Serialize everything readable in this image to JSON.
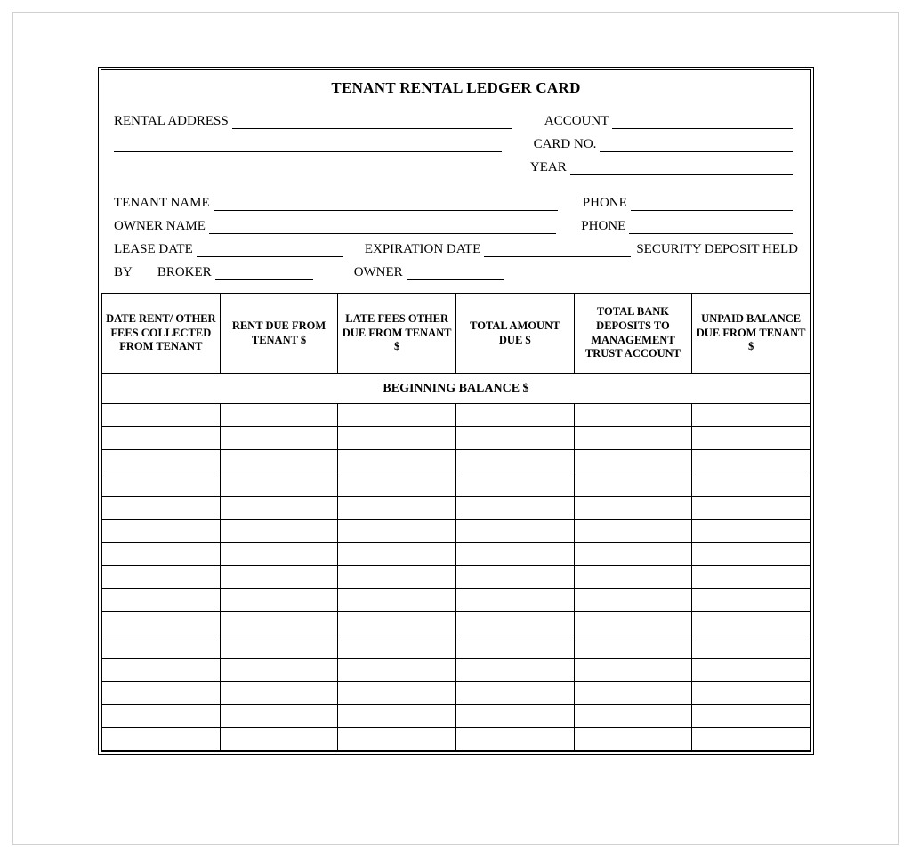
{
  "title": "TENANT RENTAL LEDGER CARD",
  "fields": {
    "rental_address": "RENTAL ADDRESS",
    "account": "ACCOUNT",
    "card_no": "CARD NO.",
    "year": "YEAR",
    "tenant_name": "TENANT NAME",
    "owner_name": "OWNER NAME",
    "phone": "PHONE",
    "lease_date": "LEASE DATE",
    "expiration_date": "EXPIRATION DATE",
    "security_deposit_held": "SECURITY DEPOSIT HELD",
    "by": "BY",
    "broker": "BROKER",
    "owner": "OWNER"
  },
  "table": {
    "columns": [
      "DATE RENT/ OTHER FEES COLLECTED FROM TENANT",
      "RENT DUE FROM TENANT $",
      "LATE FEES OTHER DUE FROM TENANT $",
      "TOTAL AMOUNT DUE $",
      "TOTAL BANK DEPOSITS TO MANAGEMENT TRUST ACCOUNT",
      "UNPAID BALANCE DUE FROM TENANT $"
    ],
    "beginning_balance_label": "BEGINNING BALANCE $",
    "row_count": 15,
    "column_count": 6
  },
  "style": {
    "background": "#ffffff",
    "border_color": "#000000",
    "outer_border": "#d0d0d0",
    "font_family": "Times New Roman",
    "title_fontsize": 17,
    "label_fontsize": 15,
    "header_fontsize": 12.5
  }
}
